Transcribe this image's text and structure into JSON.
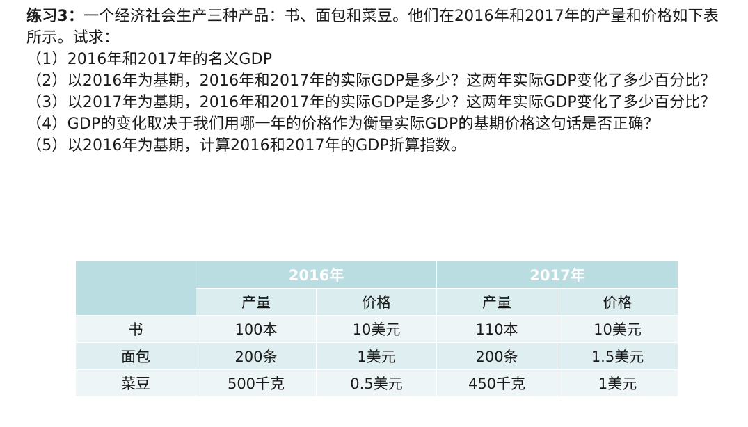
{
  "intro": {
    "title": "练习3：",
    "text": "一个经济社会生产三种产品：书、面包和菜豆。他们在2016年和2017年的产量和价格如下表所示。试求："
  },
  "questions": [
    "（1）2016年和2017年的名义GDP",
    "（2）以2016年为基期，2016年和2017年的实际GDP是多少？这两年实际GDP变化了多少百分比？",
    "（3）以2017年为基期，2016年和2017年的实际GDP是多少？这两年实际GDP变化了多少百分比？",
    "（4）GDP的变化取决于我们用哪一年的价格作为衡量实际GDP的基期价格这句话是否正确？",
    "（5）以2016年为基期，计算2016和2017年的GDP折算指数。"
  ],
  "table": {
    "colors": {
      "header": "#b9dde1",
      "subheader": "#dcedef",
      "row_light": "#edf5f7",
      "row_dark": "#dfeef1"
    },
    "years": [
      "2016年",
      "2017年"
    ],
    "subheaders": [
      "产量",
      "价格",
      "产量",
      "价格"
    ],
    "rows": [
      {
        "product": "书",
        "q2016": "100本",
        "p2016": "10美元",
        "q2017": "110本",
        "p2017": "10美元"
      },
      {
        "product": "面包",
        "q2016": "200条",
        "p2016": "1美元",
        "q2017": "200条",
        "p2017": "1.5美元"
      },
      {
        "product": "菜豆",
        "q2016": "500千克",
        "p2016": "0.5美元",
        "q2017": "450千克",
        "p2017": "1美元"
      }
    ]
  }
}
